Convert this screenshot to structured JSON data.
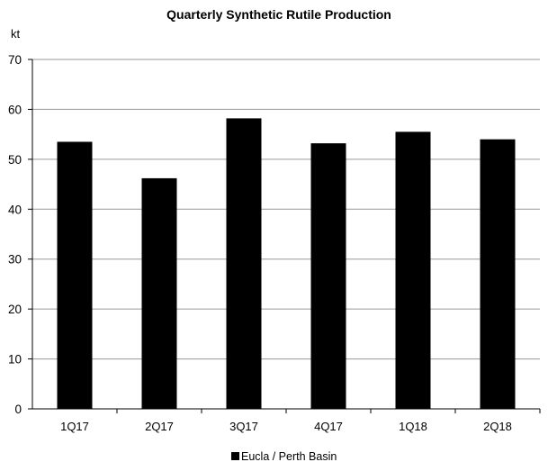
{
  "chart_data": {
    "type": "bar",
    "title": "Quarterly Synthetic Rutile Production",
    "ylabel": "kt",
    "xlabel": "",
    "categories": [
      "1Q17",
      "2Q17",
      "3Q17",
      "4Q17",
      "1Q18",
      "2Q18"
    ],
    "series": [
      {
        "name": "Eucla / Perth Basin",
        "values": [
          53.5,
          46.2,
          58.2,
          53.2,
          55.5,
          54.0
        ],
        "color": "#000000"
      }
    ],
    "ylim": [
      0,
      70
    ],
    "yticks": [
      "0",
      "10",
      "20",
      "30",
      "40",
      "50",
      "60",
      "70"
    ],
    "grid": true,
    "legend": "bottom-center"
  }
}
